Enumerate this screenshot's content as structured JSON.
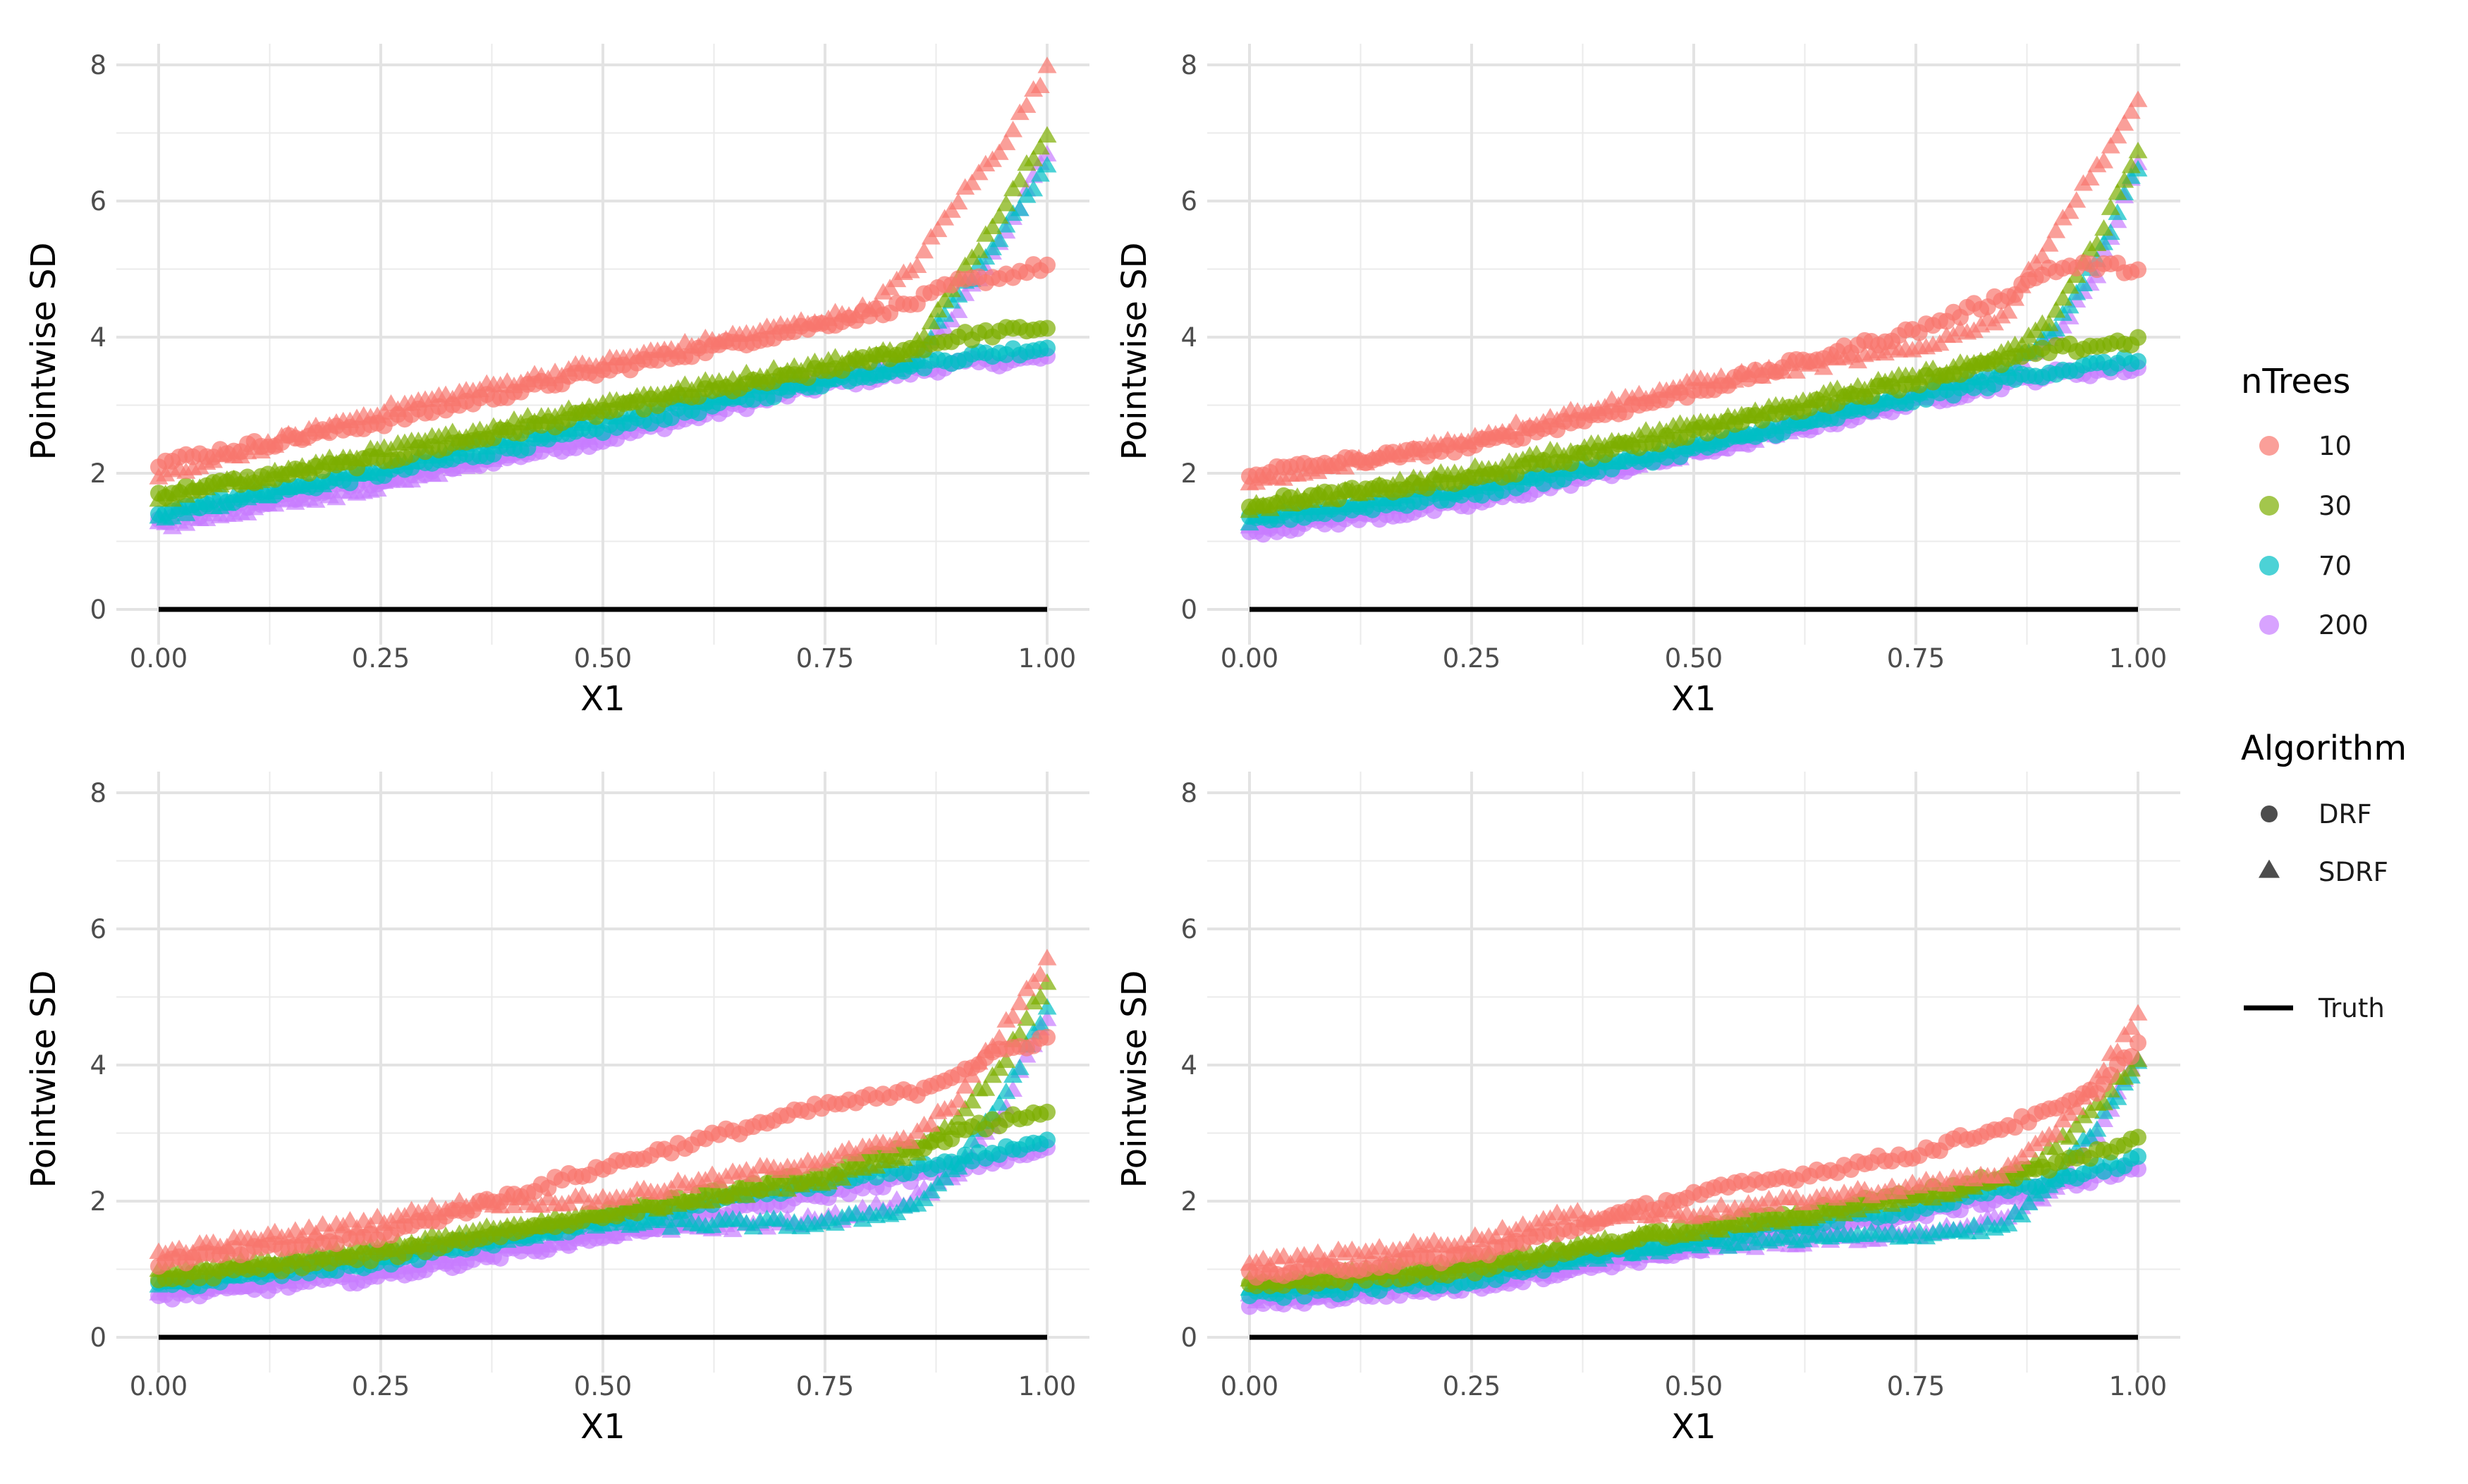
{
  "chart_data": {
    "type": "scatter",
    "layout": "2x2 facets",
    "xlabel": "X1",
    "ylabel": "Pointwise SD",
    "xlim": [
      0,
      1
    ],
    "ylim": [
      0,
      8
    ],
    "xticks": [
      "0.00",
      "0.25",
      "0.50",
      "0.75",
      "1.00"
    ],
    "yticks": [
      "0",
      "2",
      "4",
      "6",
      "8"
    ],
    "legend": {
      "ntrees_title": "nTrees",
      "ntrees": [
        {
          "label": "10",
          "color": "#F8766D"
        },
        {
          "label": "30",
          "color": "#7CAE00"
        },
        {
          "label": "70",
          "color": "#00BFC4"
        },
        {
          "label": "200",
          "color": "#C77CFF"
        }
      ],
      "algorithm_title": "Algorithm",
      "algorithms": [
        {
          "label": "DRF",
          "shape": "circle"
        },
        {
          "label": "SDRF",
          "shape": "triangle"
        }
      ],
      "truth_label": "Truth",
      "placement": "right"
    },
    "truth": {
      "x": [
        0,
        1
      ],
      "y": [
        0,
        0
      ],
      "color": "#000000"
    },
    "panels": [
      {
        "position": "top-left",
        "series": [
          {
            "ntrees": "10",
            "algorithm": "DRF",
            "x": [
              0,
              0.25,
              0.5,
              0.75,
              0.85,
              0.9,
              0.95,
              1.0
            ],
            "y": [
              2.15,
              2.75,
              3.5,
              4.2,
              4.5,
              4.8,
              4.9,
              5.05
            ]
          },
          {
            "ntrees": "10",
            "algorithm": "SDRF",
            "x": [
              0,
              0.25,
              0.5,
              0.75,
              0.8,
              0.85,
              0.9,
              0.95,
              1.0
            ],
            "y": [
              1.9,
              2.9,
              3.6,
              4.25,
              4.4,
              5.0,
              6.0,
              6.8,
              7.9
            ]
          },
          {
            "ntrees": "30",
            "algorithm": "DRF",
            "x": [
              0,
              0.25,
              0.5,
              0.75,
              0.9,
              1.0
            ],
            "y": [
              1.7,
              2.2,
              2.9,
              3.5,
              4.0,
              4.15
            ]
          },
          {
            "ntrees": "30",
            "algorithm": "SDRF",
            "x": [
              0,
              0.25,
              0.5,
              0.75,
              0.85,
              0.9,
              0.95,
              1.0
            ],
            "y": [
              1.6,
              2.3,
              3.0,
              3.6,
              3.8,
              4.8,
              5.9,
              7.0
            ]
          },
          {
            "ntrees": "70",
            "algorithm": "DRF",
            "x": [
              0,
              0.25,
              0.5,
              0.75,
              0.9,
              1.0
            ],
            "y": [
              1.45,
              2.0,
              2.65,
              3.35,
              3.7,
              3.85
            ]
          },
          {
            "ntrees": "70",
            "algorithm": "SDRF",
            "x": [
              0,
              0.25,
              0.5,
              0.75,
              0.85,
              0.9,
              0.95,
              1.0
            ],
            "y": [
              1.35,
              2.05,
              2.8,
              3.4,
              3.6,
              4.6,
              5.5,
              6.5
            ]
          },
          {
            "ntrees": "200",
            "algorithm": "DRF",
            "x": [
              0,
              0.25,
              0.5,
              0.75,
              0.9,
              1.0
            ],
            "y": [
              1.3,
              1.9,
              2.5,
              3.3,
              3.6,
              3.7
            ]
          },
          {
            "ntrees": "200",
            "algorithm": "SDRF",
            "x": [
              0,
              0.25,
              0.5,
              0.75,
              0.85,
              0.9,
              0.95,
              1.0
            ],
            "y": [
              1.2,
              1.8,
              2.6,
              3.4,
              3.6,
              4.4,
              5.4,
              6.7
            ]
          }
        ]
      },
      {
        "position": "top-right",
        "series": [
          {
            "ntrees": "10",
            "algorithm": "DRF",
            "x": [
              0,
              0.25,
              0.5,
              0.75,
              0.85,
              0.9,
              0.95,
              1.0
            ],
            "y": [
              2.0,
              2.4,
              3.2,
              4.1,
              4.6,
              5.0,
              5.05,
              5.0
            ]
          },
          {
            "ntrees": "10",
            "algorithm": "SDRF",
            "x": [
              0,
              0.25,
              0.5,
              0.75,
              0.85,
              0.9,
              0.95,
              1.0
            ],
            "y": [
              1.8,
              2.5,
              3.3,
              3.8,
              4.3,
              5.4,
              6.4,
              7.4
            ]
          },
          {
            "ntrees": "30",
            "algorithm": "DRF",
            "x": [
              0,
              0.25,
              0.5,
              0.75,
              0.9,
              1.0
            ],
            "y": [
              1.55,
              1.9,
              2.6,
              3.35,
              3.8,
              3.95
            ]
          },
          {
            "ntrees": "30",
            "algorithm": "SDRF",
            "x": [
              0,
              0.25,
              0.5,
              0.75,
              0.85,
              0.9,
              0.95,
              1.0
            ],
            "y": [
              1.45,
              2.0,
              2.7,
              3.4,
              3.7,
              4.2,
              5.3,
              6.7
            ]
          },
          {
            "ntrees": "70",
            "algorithm": "DRF",
            "x": [
              0,
              0.25,
              0.5,
              0.75,
              0.9,
              1.0
            ],
            "y": [
              1.3,
              1.7,
              2.35,
              3.1,
              3.5,
              3.65
            ]
          },
          {
            "ntrees": "70",
            "algorithm": "SDRF",
            "x": [
              0,
              0.25,
              0.5,
              0.75,
              0.85,
              0.9,
              0.95,
              1.0
            ],
            "y": [
              1.3,
              1.8,
              2.4,
              3.2,
              3.5,
              4.0,
              5.0,
              6.5
            ]
          },
          {
            "ntrees": "200",
            "algorithm": "DRF",
            "x": [
              0,
              0.25,
              0.5,
              0.75,
              0.9,
              1.0
            ],
            "y": [
              1.15,
              1.55,
              2.3,
              3.05,
              3.45,
              3.55
            ]
          },
          {
            "ntrees": "200",
            "algorithm": "SDRF",
            "x": [
              0,
              0.25,
              0.5,
              0.75,
              0.85,
              0.9,
              0.95,
              1.0
            ],
            "y": [
              1.2,
              1.7,
              2.3,
              3.1,
              3.4,
              3.9,
              4.8,
              6.5
            ]
          }
        ]
      },
      {
        "position": "bottom-left",
        "series": [
          {
            "ntrees": "10",
            "algorithm": "DRF",
            "x": [
              0,
              0.25,
              0.5,
              0.75,
              0.85,
              0.9,
              0.95,
              1.0
            ],
            "y": [
              1.1,
              1.5,
              2.5,
              3.4,
              3.6,
              3.9,
              4.2,
              4.4
            ]
          },
          {
            "ntrees": "10",
            "algorithm": "SDRF",
            "x": [
              0,
              0.25,
              0.35,
              0.5,
              0.75,
              0.85,
              0.9,
              0.95,
              1.0
            ],
            "y": [
              1.2,
              1.7,
              1.95,
              2.0,
              2.6,
              2.9,
              3.5,
              4.5,
              5.5
            ]
          },
          {
            "ntrees": "30",
            "algorithm": "DRF",
            "x": [
              0,
              0.25,
              0.5,
              0.75,
              0.9,
              1.0
            ],
            "y": [
              0.85,
              1.2,
              1.8,
              2.4,
              3.0,
              3.35
            ]
          },
          {
            "ntrees": "30",
            "algorithm": "SDRF",
            "x": [
              0,
              0.25,
              0.5,
              0.75,
              0.85,
              0.9,
              0.95,
              1.0
            ],
            "y": [
              0.9,
              1.3,
              1.8,
              2.3,
              2.7,
              3.2,
              4.0,
              5.2
            ]
          },
          {
            "ntrees": "70",
            "algorithm": "DRF",
            "x": [
              0,
              0.25,
              0.5,
              0.75,
              0.9,
              1.0
            ],
            "y": [
              0.75,
              1.1,
              1.7,
              2.25,
              2.6,
              2.85
            ]
          },
          {
            "ntrees": "70",
            "algorithm": "SDRF",
            "x": [
              0,
              0.25,
              0.5,
              0.75,
              0.85,
              0.9,
              0.95,
              1.0
            ],
            "y": [
              0.8,
              1.2,
              1.65,
              1.65,
              1.9,
              2.5,
              3.5,
              4.8
            ]
          },
          {
            "ntrees": "200",
            "algorithm": "DRF",
            "x": [
              0,
              0.25,
              0.5,
              0.75,
              0.9,
              1.0
            ],
            "y": [
              0.6,
              0.9,
              1.5,
              2.1,
              2.5,
              2.75
            ]
          },
          {
            "ntrees": "200",
            "algorithm": "SDRF",
            "x": [
              0,
              0.25,
              0.5,
              0.75,
              0.85,
              0.9,
              0.95,
              1.0
            ],
            "y": [
              0.65,
              1.0,
              1.5,
              1.7,
              2.0,
              2.4,
              3.3,
              4.7
            ]
          }
        ]
      },
      {
        "position": "bottom-right",
        "series": [
          {
            "ntrees": "10",
            "algorithm": "DRF",
            "x": [
              0,
              0.25,
              0.5,
              0.75,
              0.85,
              0.9,
              0.95,
              1.0
            ],
            "y": [
              0.9,
              1.2,
              2.1,
              2.7,
              3.1,
              3.3,
              3.6,
              4.3
            ]
          },
          {
            "ntrees": "10",
            "algorithm": "SDRF",
            "x": [
              0,
              0.25,
              0.35,
              0.5,
              0.75,
              0.85,
              0.9,
              0.95,
              1.0
            ],
            "y": [
              1.05,
              1.4,
              1.75,
              1.8,
              2.2,
              2.4,
              2.9,
              3.7,
              4.7
            ]
          },
          {
            "ntrees": "30",
            "algorithm": "DRF",
            "x": [
              0,
              0.25,
              0.5,
              0.75,
              0.9,
              1.0
            ],
            "y": [
              0.75,
              1.0,
              1.6,
              2.1,
              2.5,
              2.9
            ]
          },
          {
            "ntrees": "30",
            "algorithm": "SDRF",
            "x": [
              0,
              0.25,
              0.5,
              0.75,
              0.85,
              0.9,
              0.95,
              1.0
            ],
            "y": [
              0.8,
              1.1,
              1.55,
              2.0,
              2.3,
              2.7,
              3.3,
              4.1
            ]
          },
          {
            "ntrees": "70",
            "algorithm": "DRF",
            "x": [
              0,
              0.25,
              0.5,
              0.75,
              0.9,
              1.0
            ],
            "y": [
              0.6,
              0.85,
              1.45,
              1.9,
              2.3,
              2.6
            ]
          },
          {
            "ntrees": "70",
            "algorithm": "SDRF",
            "x": [
              0,
              0.25,
              0.5,
              0.75,
              0.85,
              0.9,
              0.95,
              1.0
            ],
            "y": [
              0.7,
              0.95,
              1.35,
              1.5,
              1.6,
              2.2,
              3.0,
              4.0
            ]
          },
          {
            "ntrees": "200",
            "algorithm": "DRF",
            "x": [
              0,
              0.25,
              0.5,
              0.75,
              0.9,
              1.0
            ],
            "y": [
              0.5,
              0.75,
              1.3,
              1.8,
              2.2,
              2.5
            ]
          },
          {
            "ntrees": "200",
            "algorithm": "SDRF",
            "x": [
              0,
              0.25,
              0.5,
              0.75,
              0.85,
              0.9,
              0.95,
              1.0
            ],
            "y": [
              0.55,
              0.8,
              1.3,
              1.5,
              1.7,
              2.1,
              2.9,
              4.1
            ]
          }
        ]
      }
    ]
  }
}
